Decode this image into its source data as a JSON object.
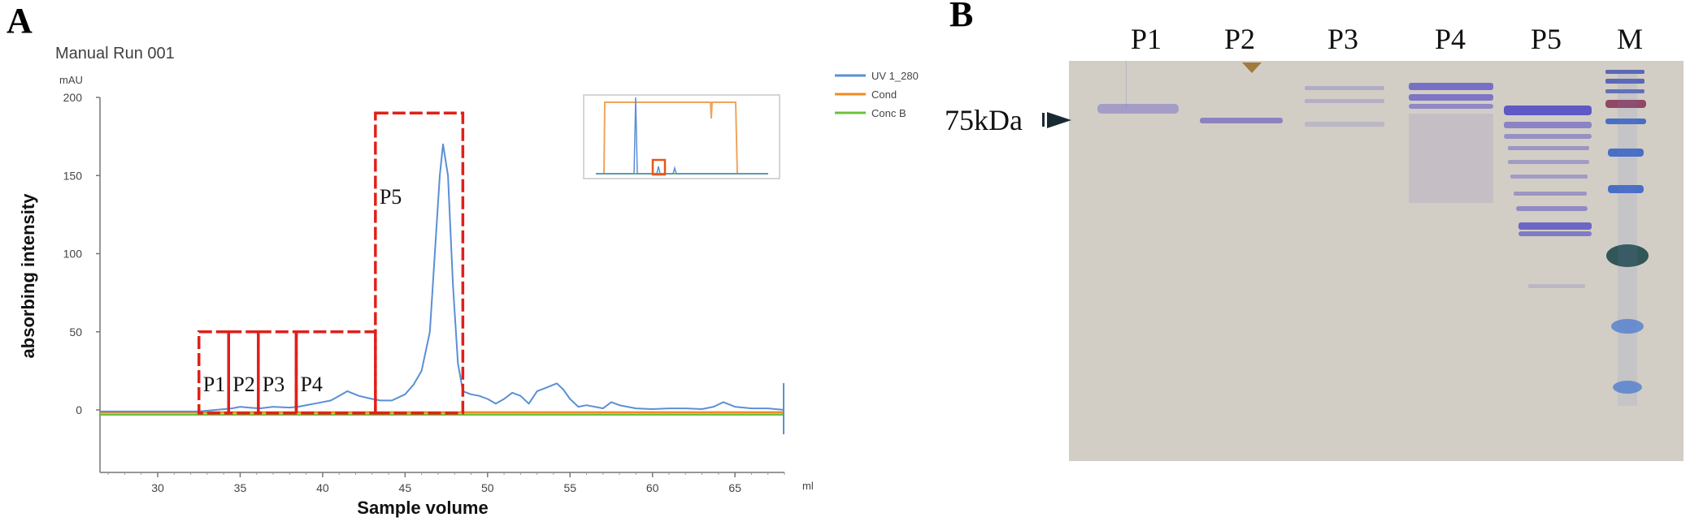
{
  "panels": {
    "a_label": "A",
    "b_label": "B"
  },
  "chart_data": {
    "type": "line",
    "title": "Manual Run  001",
    "y_unit": "mAU",
    "x_unit": "ml",
    "xlabel": "Sample volume",
    "ylabel": "absorbing intensity",
    "xlim": [
      26.5,
      68
    ],
    "ylim": [
      -40,
      200
    ],
    "xticks": [
      30,
      35,
      40,
      45,
      50,
      55,
      60,
      65
    ],
    "yticks": [
      0,
      50,
      100,
      150,
      200
    ],
    "grid": false,
    "legend_position": "top-right",
    "legend": [
      {
        "name": "UV 1_280",
        "color": "#5b8fd6"
      },
      {
        "name": "Cond",
        "color": "#f08a24"
      },
      {
        "name": "Conc B",
        "color": "#6cbf3b"
      }
    ],
    "series": [
      {
        "name": "UV 1_280",
        "color": "#5b8fd6",
        "x": [
          26.5,
          30,
          32.5,
          33.5,
          34.5,
          35.0,
          35.5,
          36.2,
          37,
          38,
          38.5,
          39.5,
          40.5,
          41.0,
          41.5,
          42.2,
          43,
          43.5,
          44.2,
          45,
          45.5,
          46.0,
          46.5,
          46.8,
          47.1,
          47.3,
          47.6,
          47.9,
          48.2,
          48.5,
          49,
          49.5,
          50.0,
          50.5,
          51.0,
          51.5,
          52.0,
          52.5,
          53.0,
          53.5,
          54.2,
          54.6,
          55.0,
          55.5,
          56.0,
          56.5,
          57.0,
          57.5,
          58.0,
          59,
          60,
          61,
          62,
          63,
          63.7,
          64.3,
          65,
          66,
          67,
          68
        ],
        "y": [
          -1,
          -1,
          -1,
          0,
          1,
          2,
          1.5,
          1,
          2,
          1.5,
          2,
          4,
          6,
          9,
          12,
          9,
          7,
          6,
          6,
          10,
          16,
          25,
          50,
          100,
          150,
          170,
          150,
          80,
          30,
          12,
          10,
          9,
          7,
          4,
          7,
          11,
          9,
          4,
          12,
          14,
          17,
          13,
          7,
          2,
          3,
          2,
          1,
          5,
          3,
          1,
          0.5,
          1,
          1,
          0.5,
          2,
          5,
          2,
          1,
          1,
          0
        ]
      },
      {
        "name": "Cond",
        "color": "#f08a24",
        "x": [
          26.5,
          68
        ],
        "y": [
          -1.5,
          -1.5
        ]
      },
      {
        "name": "Conc B",
        "color": "#6cbf3b",
        "x": [
          26.5,
          68
        ],
        "y": [
          -3,
          -3
        ]
      }
    ],
    "fractions": [
      {
        "label": "P1",
        "x0": 32.5,
        "x1": 34.3,
        "ytop": 50
      },
      {
        "label": "P2",
        "x0": 34.3,
        "x1": 36.1,
        "ytop": 50
      },
      {
        "label": "P3",
        "x0": 36.1,
        "x1": 38.4,
        "ytop": 50
      },
      {
        "label": "P4",
        "x0": 38.4,
        "x1": 43.2,
        "ytop": 50
      },
      {
        "label": "P5",
        "x0": 43.2,
        "x1": 48.5,
        "ytop": 190
      }
    ]
  },
  "gel": {
    "lane_labels": [
      "P1",
      "P2",
      "P3",
      "P4",
      "P5",
      "M"
    ],
    "marker_label": "75kDa"
  }
}
